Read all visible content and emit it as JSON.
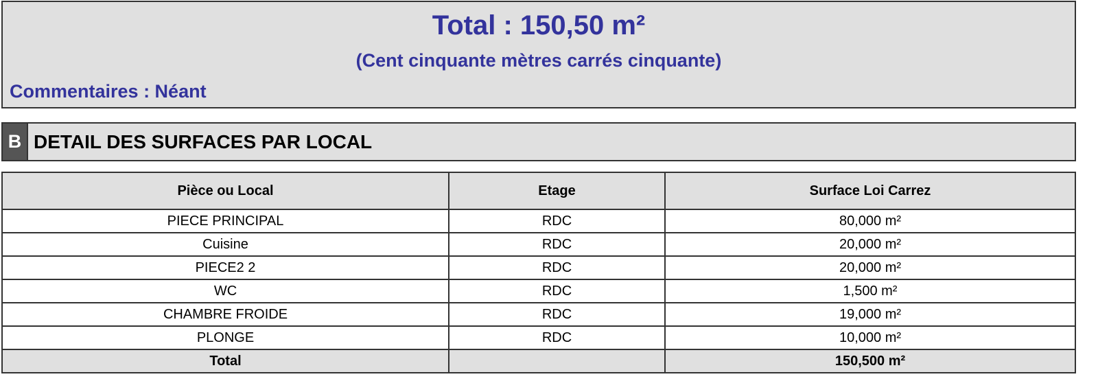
{
  "summary": {
    "total": "Total : 150,50 m²",
    "total_words": "(Cent cinquante mètres carrés cinquante)",
    "comments": "Commentaires : Néant"
  },
  "section": {
    "letter": "B",
    "title": "DETAIL DES SURFACES PAR LOCAL"
  },
  "colors": {
    "accent_text": "#33339c",
    "panel_bg": "#e0e0e0",
    "section_letter_bg": "#555555"
  },
  "table": {
    "headers": [
      "Pièce ou Local",
      "Etage",
      "Surface Loi Carrez"
    ],
    "rows": [
      [
        "PIECE PRINCIPAL",
        "RDC",
        "80,000 m²"
      ],
      [
        "Cuisine",
        "RDC",
        "20,000 m²"
      ],
      [
        "PIECE2 2",
        "RDC",
        "20,000 m²"
      ],
      [
        "WC",
        "RDC",
        "1,500 m²"
      ],
      [
        "CHAMBRE FROIDE",
        "RDC",
        "19,000 m²"
      ],
      [
        "PLONGE",
        "RDC",
        "10,000 m²"
      ]
    ],
    "total": [
      "Total",
      "",
      "150,500 m²"
    ]
  }
}
